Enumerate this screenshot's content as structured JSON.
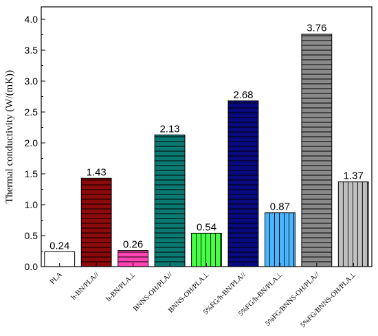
{
  "chart_data": {
    "type": "bar",
    "title": "",
    "xlabel": "",
    "ylabel": "Thermal conductivity (W/(mK))",
    "ylim": [
      0,
      4.2
    ],
    "yticks": [
      "0.0",
      "0.5",
      "1.0",
      "1.5",
      "2.0",
      "2.5",
      "3.0",
      "3.5",
      "4.0"
    ],
    "grid": false,
    "legend": "none",
    "categories": [
      "PLA",
      "h-BN/PLA//",
      "h-BN/PLA⊥",
      "BNNS-OH/PLA//",
      "BNNS-OH/PLA⊥",
      "5%FG/h-BN/PLA//",
      "5%FG/h-BN/PLA⊥",
      "5%FG/BNNS-OH/PLA//",
      "5%FG/BNNS-OH/PLA⊥"
    ],
    "values": [
      0.24,
      1.43,
      0.26,
      2.13,
      0.54,
      2.68,
      0.87,
      3.76,
      1.37
    ],
    "data_labels": [
      "0.24",
      "1.43",
      "0.26",
      "2.13",
      "0.54",
      "2.68",
      "0.87",
      "3.76",
      "1.37"
    ],
    "bar_colors": [
      "#ffffff",
      "#8b0a0a",
      "#ff44b4",
      "#0a7a72",
      "#44ff44",
      "#0a0a80",
      "#4ab4ff",
      "#8a8a8a",
      "#c0c0c0"
    ],
    "bar_patterns": [
      "none",
      "horizontal",
      "horizontal",
      "horizontal",
      "vertical",
      "horizontal",
      "vertical",
      "horizontal",
      "vertical"
    ]
  }
}
